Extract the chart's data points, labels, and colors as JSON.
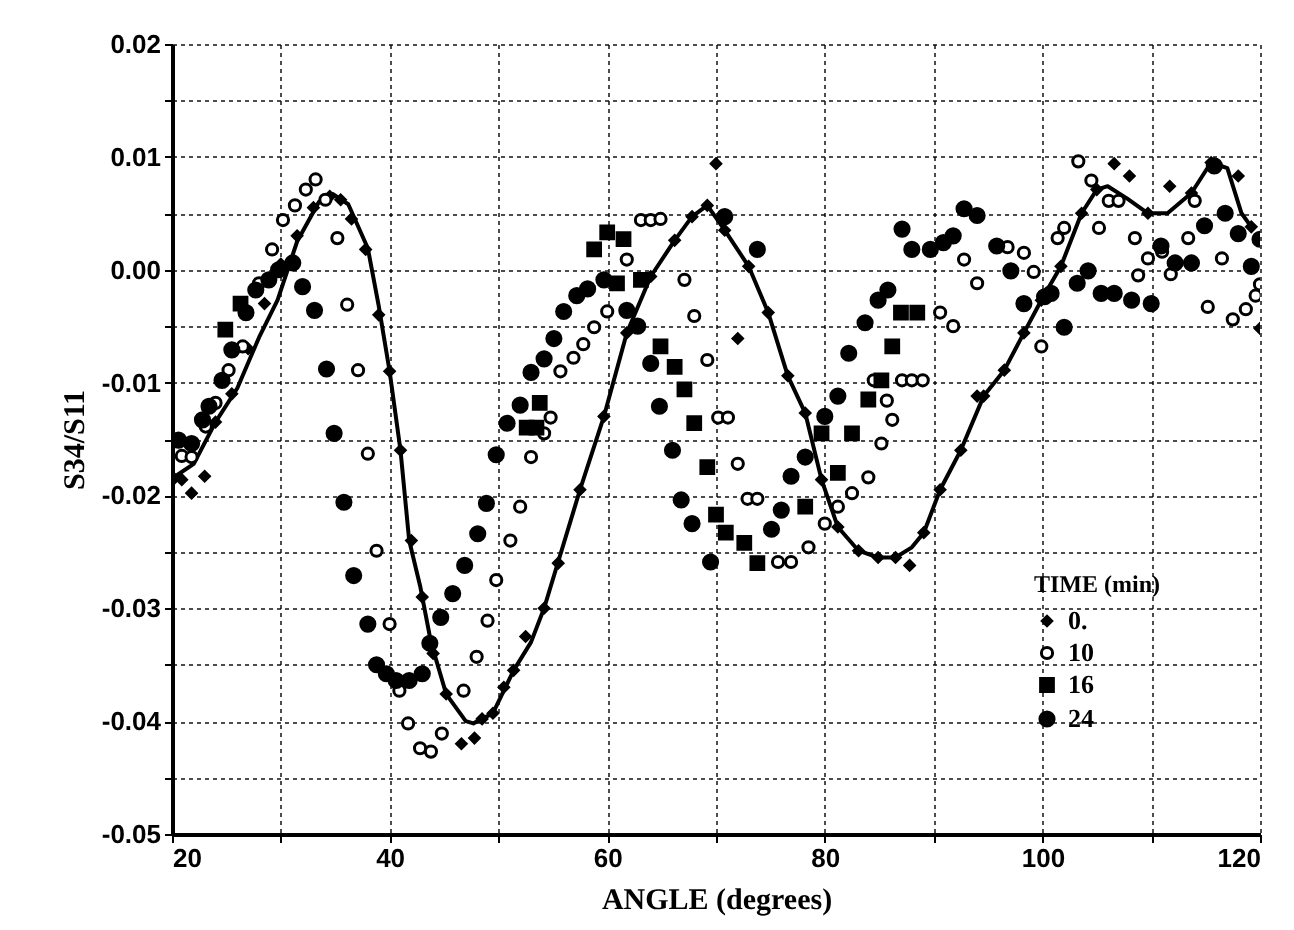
{
  "chart_data": {
    "type": "scatter",
    "xlabel": "ANGLE (degrees)",
    "ylabel": "S34/S11",
    "legend_title": "TIME (min)",
    "legend": "bottom right",
    "grid": true,
    "xlim": [
      20,
      120
    ],
    "ylim": [
      -0.05,
      0.02
    ],
    "xticks": [
      20,
      {
        "value": 30,
        "label": null
      },
      40,
      {
        "value": 50,
        "label": null
      },
      60,
      {
        "value": 70,
        "label": null
      },
      80,
      {
        "value": 90,
        "label": null
      },
      100,
      {
        "value": 110,
        "label": null
      },
      120
    ],
    "yticks": [
      0.02,
      {
        "value": 0.015,
        "label": null
      },
      0.01,
      {
        "value": 0.005,
        "label": null
      },
      {
        "value": 0,
        "label": "0.00"
      },
      {
        "value": -0.005,
        "label": null
      },
      -0.01,
      {
        "value": -0.015,
        "label": null
      },
      -0.02,
      {
        "value": -0.025,
        "label": null
      },
      -0.03,
      {
        "value": -0.035,
        "label": null
      },
      -0.04,
      {
        "value": -0.045,
        "label": null
      },
      -0.05
    ],
    "series": [
      {
        "name": "0.",
        "type": "scatter",
        "marker": "diamond",
        "color": "#000000",
        "x": [
          20.2,
          20.9,
          21.8,
          23,
          24,
          25.5,
          27,
          28.5,
          30,
          31.5,
          33,
          34.5,
          35.5,
          36.5,
          37.8,
          39,
          40,
          41,
          42,
          43,
          44,
          45.2,
          46.6,
          47.8,
          48.5,
          49.5,
          50.5,
          51.4,
          52.5,
          54.2,
          55.5,
          57.5,
          59.7,
          61.8,
          64,
          66.2,
          67.8,
          69.2,
          70,
          70.8,
          72,
          73,
          74.8,
          76.6,
          78.2,
          79.7,
          81.2,
          83.1,
          84.9,
          86.5,
          87.8,
          89.1,
          90.6,
          92.5,
          94,
          94.6,
          96.5,
          98.3,
          99.9,
          101.7,
          103.6,
          105,
          106.6,
          108,
          109.7,
          111.7,
          113.7,
          115.5,
          118,
          119.2,
          120
        ],
        "values": [
          -0.0185,
          -0.0186,
          -0.0198,
          -0.0183,
          -0.0135,
          -0.011,
          -0.007,
          -0.003,
          0.0005,
          0.003,
          0.0055,
          0.0065,
          0.0062,
          0.0045,
          0.0018,
          -0.004,
          -0.009,
          -0.016,
          -0.024,
          -0.029,
          -0.034,
          -0.0376,
          -0.042,
          -0.0415,
          -0.0398,
          -0.0393,
          -0.037,
          -0.0355,
          -0.0325,
          -0.03,
          -0.026,
          -0.0195,
          -0.013,
          -0.0056,
          -0.0006,
          0.0026,
          0.0047,
          0.0057,
          0.0094,
          0.0035,
          -0.0061,
          0.0003,
          -0.0038,
          -0.0094,
          -0.0127,
          -0.0186,
          -0.0228,
          -0.0249,
          -0.0255,
          -0.0255,
          -0.0262,
          -0.0233,
          -0.0195,
          -0.016,
          -0.0112,
          -0.0112,
          -0.0089,
          -0.0056,
          -0.0027,
          0.0003,
          0.005,
          0.0071,
          0.0094,
          0.0083,
          0.005,
          0.0074,
          0.0068,
          0.0095,
          0.0083,
          0.0038,
          -0.0052
        ]
      },
      {
        "name": "10",
        "type": "scatter",
        "marker": "circle-open",
        "color": "#000000",
        "x": [
          20.9,
          21.8,
          23.1,
          24,
          25.2,
          26.5,
          28,
          29.2,
          30.2,
          31.3,
          32.3,
          33.2,
          34.1,
          35.2,
          36.1,
          37.1,
          38,
          38.8,
          40,
          40.9,
          41.7,
          42.8,
          43.8,
          44.8,
          46.8,
          48,
          49,
          49.8,
          51.1,
          52,
          53,
          54.2,
          54.8,
          55.7,
          56.9,
          57.8,
          58.8,
          60,
          61.8,
          63.1,
          64,
          64.9,
          67.1,
          68,
          69.2,
          70.2,
          71.1,
          72,
          72.9,
          73.8,
          75.7,
          76.9,
          78.5,
          80,
          81.2,
          82.5,
          84,
          84.5,
          85.2,
          85.7,
          86.2,
          87.1,
          88,
          89,
          90.6,
          91.8,
          92.8,
          94,
          96.8,
          98.3,
          99.2,
          99.9,
          101.4,
          102,
          103.3,
          104.5,
          105.2,
          106.1,
          107,
          108.5,
          108.8,
          109.7,
          111,
          111.8,
          113.4,
          114,
          115.2,
          116.5,
          117.5,
          118.7,
          119.6,
          120
        ],
        "values": [
          -0.0165,
          -0.0166,
          -0.0139,
          -0.0118,
          -0.0089,
          -0.0068,
          -0.0012,
          0.0018,
          0.0044,
          0.0057,
          0.0071,
          0.008,
          0.0062,
          0.0028,
          -0.0031,
          -0.0089,
          -0.0163,
          -0.0249,
          -0.0314,
          -0.0373,
          -0.0402,
          -0.0424,
          -0.0427,
          -0.0411,
          -0.0373,
          -0.0343,
          -0.0311,
          -0.0275,
          -0.024,
          -0.021,
          -0.0166,
          -0.0145,
          -0.0131,
          -0.009,
          -0.0078,
          -0.0066,
          -0.0051,
          -0.0037,
          0.0009,
          0.0044,
          0.0044,
          0.0045,
          -0.0009,
          -0.0041,
          -0.008,
          -0.0131,
          -0.0131,
          -0.0172,
          -0.0203,
          -0.0203,
          -0.0259,
          -0.0259,
          -0.0246,
          -0.0225,
          -0.021,
          -0.0198,
          -0.0184,
          -0.0098,
          -0.0154,
          -0.0116,
          -0.0133,
          -0.0098,
          -0.0098,
          -0.0098,
          -0.0038,
          -0.005,
          0.0009,
          -0.0012,
          0.002,
          0.0015,
          -0.0002,
          -0.0068,
          0.0028,
          0.0037,
          0.0096,
          0.0079,
          0.0037,
          0.0061,
          0.0061,
          0.0028,
          -0.0005,
          0.001,
          0.0016,
          -0.0004,
          0.0028,
          0.0061,
          -0.0033,
          0.001,
          -0.0044,
          -0.0035,
          -0.0023,
          -0.0013
        ]
      },
      {
        "name": "16",
        "type": "scatter",
        "marker": "square",
        "color": "#000000",
        "x": [
          24.9,
          26.3,
          52.6,
          53.5,
          53.8,
          58.8,
          60,
          60.9,
          61.5,
          63.1,
          64.9,
          66.2,
          67.1,
          68,
          69.2,
          70,
          70.9,
          72.6,
          73.8,
          78.2,
          79.7,
          81.2,
          82.5,
          84,
          85.2,
          86.2,
          87,
          88.5
        ],
        "values": [
          -0.0053,
          -0.003,
          -0.014,
          -0.014,
          -0.0118,
          0.0018,
          0.0033,
          -0.0012,
          0.0027,
          -0.0009,
          -0.0068,
          -0.0086,
          -0.0106,
          -0.0136,
          -0.0175,
          -0.0217,
          -0.0233,
          -0.0242,
          -0.026,
          -0.021,
          -0.0145,
          -0.018,
          -0.0145,
          -0.0115,
          -0.0098,
          -0.0068,
          -0.0038,
          -0.0038
        ]
      },
      {
        "name": "24",
        "type": "scatter",
        "marker": "circle",
        "color": "#000000",
        "x": [
          20.6,
          21.8,
          22.8,
          23.4,
          24.6,
          25.5,
          26.8,
          27.7,
          28.9,
          29.8,
          31.1,
          32,
          33.1,
          34.2,
          34.9,
          35.8,
          36.7,
          38,
          38.8,
          39.7,
          40.6,
          41.8,
          43,
          43.7,
          44.7,
          45.8,
          46.9,
          48.1,
          48.9,
          49.8,
          50.8,
          52,
          53,
          54.2,
          55.1,
          56,
          57.2,
          58.2,
          59.7,
          61.8,
          62.8,
          64,
          64.8,
          66,
          66.8,
          67.8,
          69.5,
          70.8,
          73.8,
          75.1,
          76,
          76.9,
          78.2,
          80,
          81.2,
          82.2,
          83.7,
          84.9,
          85.8,
          87.1,
          88,
          89.7,
          90.9,
          91.8,
          92.8,
          94,
          95.8,
          97.1,
          98.3,
          100.2,
          100.8,
          102,
          103.2,
          104.2,
          105.4,
          106.6,
          108.2,
          110,
          110.9,
          112.2,
          113.7,
          114.9,
          115.8,
          116.8,
          118,
          119.2,
          120
        ],
        "values": [
          -0.0151,
          -0.0154,
          -0.0133,
          -0.0121,
          -0.0098,
          -0.0071,
          -0.0038,
          -0.0018,
          -0.0009,
          0,
          0.0006,
          -0.0015,
          -0.0036,
          -0.0088,
          -0.0145,
          -0.0206,
          -0.0271,
          -0.0314,
          -0.035,
          -0.0358,
          -0.0364,
          -0.0364,
          -0.0358,
          -0.0331,
          -0.0308,
          -0.0287,
          -0.0262,
          -0.0234,
          -0.0207,
          -0.0164,
          -0.0136,
          -0.012,
          -0.0091,
          -0.0079,
          -0.0061,
          -0.0037,
          -0.0023,
          -0.0017,
          -0.0009,
          -0.0036,
          -0.005,
          -0.0083,
          -0.0121,
          -0.016,
          -0.0204,
          -0.0225,
          -0.0259,
          0.0047,
          0.0018,
          -0.023,
          -0.0213,
          -0.0183,
          -0.0166,
          -0.013,
          -0.0112,
          -0.0074,
          -0.0047,
          -0.0027,
          -0.0018,
          0.0036,
          0.0018,
          0.0018,
          0.0024,
          0.003,
          0.0054,
          0.0048,
          0.0021,
          -0.0001,
          -0.003,
          -0.0024,
          -0.0021,
          -0.0051,
          -0.0012,
          -0.0001,
          -0.0021,
          -0.0021,
          -0.0027,
          -0.003,
          0.0021,
          0.0006,
          0.0006,
          0.0039,
          0.0092,
          0.005,
          0.0032,
          0.0003,
          0.0027
        ]
      },
      {
        "type": "line",
        "marker": "none",
        "color": "#000000",
        "x": [
          20,
          22,
          24,
          26,
          28,
          29.7,
          31.5,
          33.5,
          34.8,
          36.2,
          38,
          39,
          40,
          41,
          41.8,
          42.8,
          43.8,
          45.2,
          47,
          47.7,
          49.5,
          51.4,
          53,
          54.2,
          57.5,
          59.7,
          61.8,
          64,
          66.2,
          67.8,
          69.2,
          70.8,
          73,
          74.8,
          76.6,
          78.2,
          79.7,
          81.2,
          83.1,
          84.9,
          86.5,
          88,
          89.1,
          90.6,
          92.5,
          94.6,
          96.5,
          98.3,
          99.9,
          101.7,
          103.6,
          105,
          106,
          107.8,
          109.7,
          111.5,
          113.7,
          115.5,
          117,
          118.3,
          119.2
        ],
        "values": [
          -0.0185,
          -0.0172,
          -0.0135,
          -0.0105,
          -0.006,
          -0.0027,
          0.0025,
          0.006,
          0.0067,
          0.0058,
          0.0019,
          -0.0032,
          -0.009,
          -0.016,
          -0.024,
          -0.028,
          -0.033,
          -0.0376,
          -0.04,
          -0.0402,
          -0.0393,
          -0.0355,
          -0.033,
          -0.03,
          -0.0195,
          -0.013,
          -0.0056,
          -0.0006,
          0.0026,
          0.0047,
          0.0057,
          0.0035,
          0.0003,
          -0.0038,
          -0.0094,
          -0.0127,
          -0.0186,
          -0.0228,
          -0.0249,
          -0.0255,
          -0.0255,
          -0.0246,
          -0.0233,
          -0.0195,
          -0.016,
          -0.0112,
          -0.0089,
          -0.0056,
          -0.0027,
          0.0003,
          0.005,
          0.0071,
          0.0074,
          0.0063,
          0.005,
          0.005,
          0.0068,
          0.0095,
          0.009,
          0.005,
          0.0038
        ]
      }
    ]
  }
}
